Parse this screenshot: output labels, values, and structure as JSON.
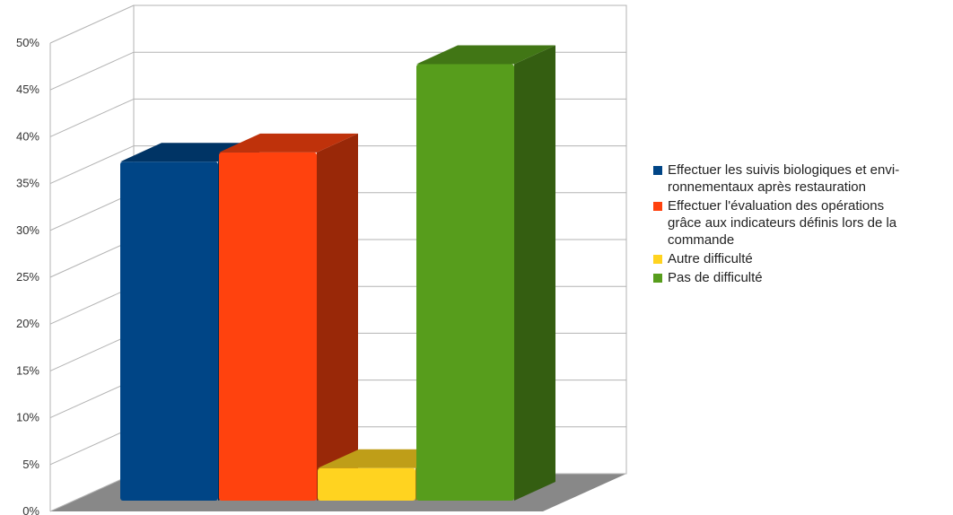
{
  "chart_data": {
    "type": "bar",
    "categories": [
      "Effectuer les suivis biologiques et envi-ronnementaux après restauration",
      "Effectuer l'évaluation des opérations grâce aux indicateurs définis lors de la commande",
      "Autre difficulté",
      "Pas de difficulté"
    ],
    "values": [
      36.5,
      37.5,
      3.5,
      47
    ],
    "ylim": [
      0,
      50
    ],
    "y_ticks": [
      "0%",
      "5%",
      "10%",
      "15%",
      "20%",
      "25%",
      "30%",
      "35%",
      "40%",
      "45%",
      "50%"
    ],
    "grid": true,
    "legend_position": "right",
    "three_d": true,
    "colors": [
      "#004586",
      "#ff420e",
      "#ffd320",
      "#579d1c"
    ]
  },
  "legend": [
    {
      "lines": [
        "Effectuer les suivis biologiques et envi-",
        "ronnementaux après restauration"
      ],
      "color": "#004586"
    },
    {
      "lines": [
        "Effectuer l'évaluation des opérations",
        "grâce aux indicateurs définis lors de la",
        "commande"
      ],
      "color": "#ff420e"
    },
    {
      "lines": [
        "Autre difficulté"
      ],
      "color": "#ffd320"
    },
    {
      "lines": [
        "Pas de difficulté"
      ],
      "color": "#579d1c"
    }
  ]
}
